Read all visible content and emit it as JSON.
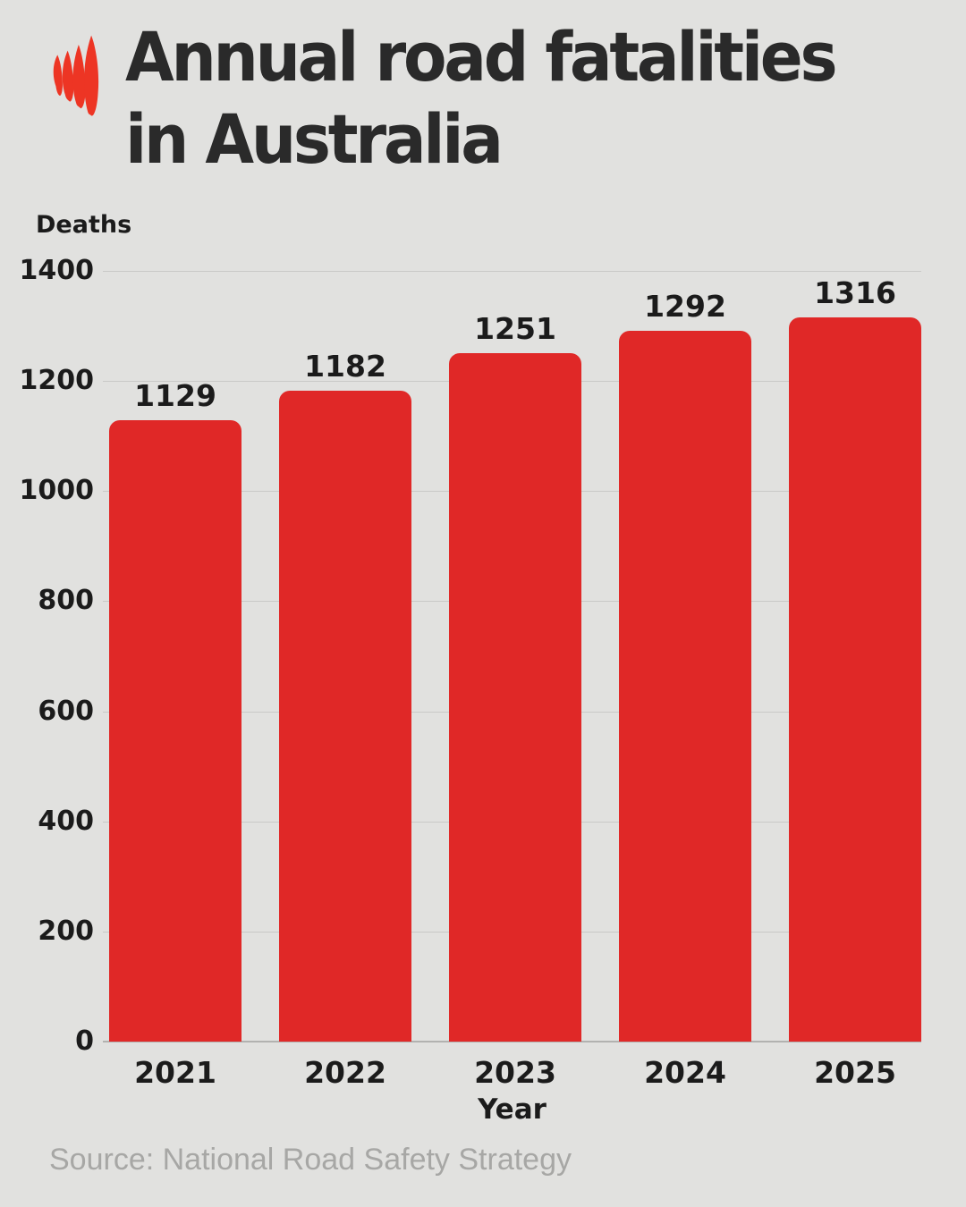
{
  "page": {
    "background_color": "#e1e1df"
  },
  "header": {
    "title_line1": "Annual road fatalities",
    "title_line2": "in Australia",
    "logo_name": "sbs-logo",
    "logo_color": "#ed3524"
  },
  "chart_data": {
    "type": "bar",
    "title": "Annual road fatalities in Australia",
    "categories": [
      "2021",
      "2022",
      "2023",
      "2024",
      "2025"
    ],
    "values": [
      1129,
      1182,
      1251,
      1292,
      1316
    ],
    "xlabel": "Year",
    "ylabel": "Deaths",
    "ylim": [
      0,
      1400
    ],
    "yticks": [
      0,
      200,
      400,
      600,
      800,
      1000,
      1200,
      1400
    ],
    "grid": true,
    "legend": "none",
    "bar_color": "#e02827",
    "value_labels_shown": true
  },
  "footer": {
    "source": "Source: National Road Safety Strategy"
  }
}
